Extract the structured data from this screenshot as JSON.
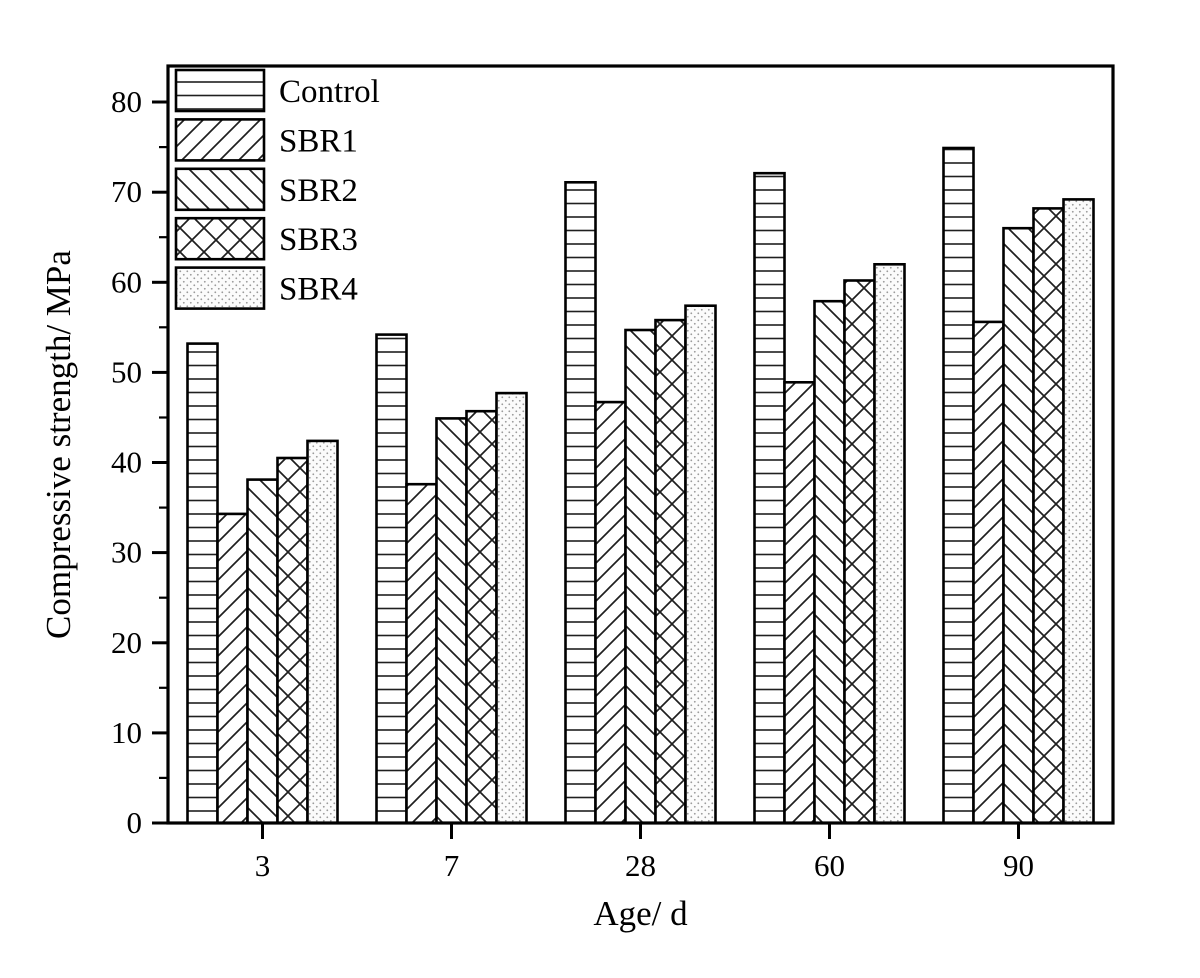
{
  "figure": {
    "background": "#ffffff",
    "frame_color": "#000000",
    "text_color": "#000000",
    "pattern_line_color": "#1f1f1f",
    "dot_color": "#999999",
    "bar_fill": "#ffffff"
  },
  "chart_data": {
    "type": "bar",
    "title": "",
    "xlabel": "Age/ d",
    "ylabel": "Compressive strength/ MPa",
    "categories": [
      "3",
      "7",
      "28",
      "60",
      "90"
    ],
    "series": [
      {
        "name": "Control",
        "pattern": "horizontal-lines",
        "values": [
          53.2,
          54.2,
          71.1,
          72.1,
          74.9
        ]
      },
      {
        "name": "SBR1",
        "pattern": "diagonal-forward",
        "values": [
          34.3,
          37.6,
          46.7,
          48.9,
          55.6
        ]
      },
      {
        "name": "SBR2",
        "pattern": "diagonal-back",
        "values": [
          38.1,
          44.9,
          54.7,
          57.9,
          66.0
        ]
      },
      {
        "name": "SBR3",
        "pattern": "crosshatch",
        "values": [
          40.5,
          45.7,
          55.8,
          60.2,
          68.2
        ]
      },
      {
        "name": "SBR4",
        "pattern": "dots",
        "values": [
          42.4,
          47.7,
          57.4,
          62.0,
          69.2
        ]
      }
    ],
    "ylim": [
      0,
      84
    ],
    "yticks": [
      0,
      10,
      20,
      30,
      40,
      50,
      60,
      70,
      80
    ],
    "minor_ytick_step": 5,
    "grid": false,
    "legend_position": "top-left",
    "legend_labels": [
      "Control",
      "SBR1",
      "SBR2",
      "SBR3",
      "SBR4"
    ]
  }
}
